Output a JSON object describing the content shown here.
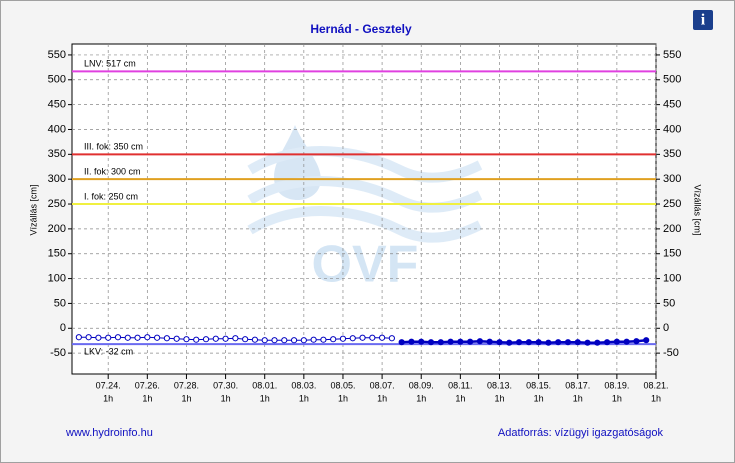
{
  "chart_data": {
    "type": "line",
    "title": "Hernád - Gesztely",
    "ylabel": "Vízállás [cm]",
    "watermark": "OVF",
    "footer_left": "www.hydroinfo.hu",
    "footer_right": "Adatforrás: vízügyi igazgatóságok",
    "info_icon": "i",
    "xlim": [
      22.15,
      52
    ],
    "xticks": [
      {
        "value": 24,
        "label": "07.24."
      },
      {
        "value": 26,
        "label": "07.26."
      },
      {
        "value": 28,
        "label": "07.28."
      },
      {
        "value": 30,
        "label": "07.30."
      },
      {
        "value": 32,
        "label": "08.01."
      },
      {
        "value": 34,
        "label": "08.03."
      },
      {
        "value": 36,
        "label": "08.05."
      },
      {
        "value": 38,
        "label": "08.07."
      },
      {
        "value": 40,
        "label": "08.09."
      },
      {
        "value": 42,
        "label": "08.11."
      },
      {
        "value": 44,
        "label": "08.13."
      },
      {
        "value": 46,
        "label": "08.15."
      },
      {
        "value": 48,
        "label": "08.17."
      },
      {
        "value": 50,
        "label": "08.19."
      },
      {
        "value": 52,
        "label": "08.21."
      }
    ],
    "xtick_time": "1h",
    "ylim": [
      -92,
      572
    ],
    "yticks": [
      -50,
      0,
      50,
      100,
      150,
      200,
      250,
      300,
      350,
      400,
      450,
      500,
      550
    ],
    "grid": true,
    "reference_lines": [
      {
        "label": "LNV: 517 cm",
        "value": 517,
        "color": "#e040e0"
      },
      {
        "label": "III. fok: 350 cm",
        "value": 350,
        "color": "#e03030"
      },
      {
        "label": "II. fok: 300 cm",
        "value": 300,
        "color": "#e0a020"
      },
      {
        "label": "I. fok: 250 cm",
        "value": 250,
        "color": "#f0f040"
      },
      {
        "label": "LKV: -32 cm",
        "value": -32,
        "color": "#6a6af0"
      }
    ],
    "series": [
      {
        "color": "#0000c0",
        "marker": "hollow",
        "x": [
          22.5,
          23,
          23.5,
          24,
          24.5,
          25,
          25.5,
          26,
          26.5,
          27,
          27.5,
          28,
          28.5,
          29,
          29.5,
          30,
          30.5,
          31,
          31.5,
          32,
          32.5,
          33,
          33.5,
          34,
          34.5,
          35,
          35.5,
          36,
          36.5,
          37,
          37.5,
          38,
          38.5
        ],
        "values": [
          -18,
          -18,
          -19,
          -19,
          -18,
          -19,
          -19,
          -18,
          -19,
          -20,
          -21,
          -22,
          -23,
          -22,
          -21,
          -21,
          -20,
          -22,
          -23,
          -24,
          -24,
          -24,
          -24,
          -24,
          -23,
          -23,
          -22,
          -21,
          -20,
          -19,
          -19,
          -19,
          -20
        ]
      },
      {
        "color": "#0000c0",
        "marker": "filled",
        "x": [
          39,
          39.5,
          40,
          40.5,
          41,
          41.5,
          42,
          42.5,
          43,
          43.5,
          44,
          44.5,
          45,
          45.5,
          46,
          46.5,
          47,
          47.5,
          48,
          48.5,
          49,
          49.5,
          50,
          50.5,
          51,
          51.5
        ],
        "values": [
          -28,
          -27,
          -27,
          -28,
          -28,
          -27,
          -27,
          -27,
          -26,
          -27,
          -28,
          -29,
          -28,
          -28,
          -28,
          -29,
          -28,
          -28,
          -28,
          -29,
          -29,
          -28,
          -27,
          -27,
          -26,
          -24
        ]
      }
    ]
  }
}
